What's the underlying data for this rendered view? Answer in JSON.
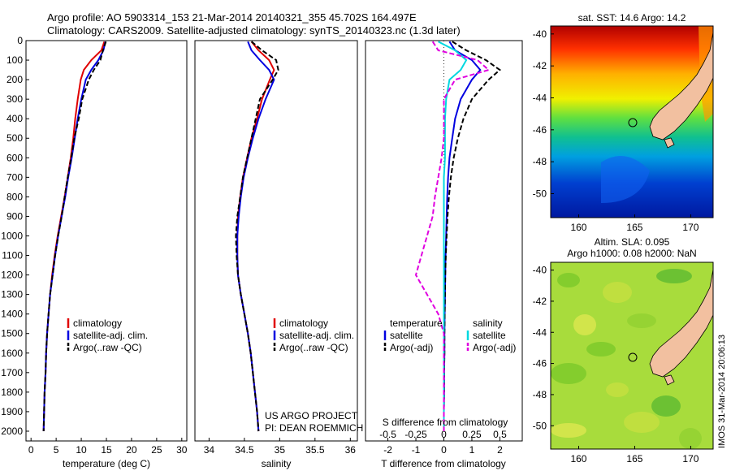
{
  "figure": {
    "title_line1": "Argo profile: AO 5903314_153 21-Mar-2014 20140321_355 45.702S 164.497E",
    "title_line2": "Climatology: CARS2009. Satellite-adjusted climatology: synTS_20140323.nc (1.3d later)",
    "watermark": "IMOS 31-Mar-2014 20:06:13"
  },
  "colors": {
    "climatology": "#e00000",
    "satellite": "#0000e0",
    "argo": "#000000",
    "sat_salinity": "#00d8e0",
    "argo_salinity": "#e000e0"
  },
  "chart_data": [
    {
      "type": "line",
      "id": "temperature",
      "xlabel": "temperature (deg C)",
      "xlim": [
        -1,
        31
      ],
      "xticks": [
        0,
        5,
        10,
        15,
        20,
        25,
        30
      ],
      "ylim": [
        2050,
        0
      ],
      "yticks": [
        0,
        100,
        200,
        300,
        400,
        500,
        600,
        700,
        800,
        900,
        1000,
        1100,
        1200,
        1300,
        1400,
        1500,
        1600,
        1700,
        1800,
        1900,
        2000
      ],
      "legend": [
        "climatology",
        "satellite-adj. clim.",
        "Argo(..raw -QC)"
      ],
      "depth": [
        5,
        50,
        100,
        150,
        200,
        300,
        400,
        500,
        600,
        700,
        800,
        900,
        1000,
        1100,
        1200,
        1300,
        1400,
        1500,
        1600,
        1700,
        1800,
        1900,
        2000
      ],
      "series": [
        {
          "name": "climatology",
          "values": [
            14.6,
            14.0,
            12.0,
            10.5,
            9.9,
            9.3,
            8.8,
            8.4,
            7.9,
            7.3,
            6.7,
            6.0,
            5.3,
            4.7,
            4.2,
            3.8,
            3.5,
            3.2,
            3.0,
            2.9,
            2.7,
            2.6,
            2.5
          ]
        },
        {
          "name": "satellite-adj. clim.",
          "values": [
            14.8,
            14.4,
            13.4,
            12.0,
            10.9,
            10.0,
            9.3,
            8.7,
            8.1,
            7.4,
            6.8,
            6.1,
            5.4,
            4.8,
            4.3,
            3.8,
            3.5,
            3.2,
            3.0,
            2.9,
            2.7,
            2.6,
            2.5
          ]
        },
        {
          "name": "Argo(..raw -QC)",
          "values": [
            14.9,
            14.3,
            13.8,
            12.5,
            11.5,
            10.2,
            9.5,
            8.6,
            8.0,
            7.3,
            6.7,
            6.1,
            5.4,
            4.8,
            4.3,
            3.8,
            3.5,
            3.2,
            3.0,
            2.9,
            2.7,
            2.6,
            2.5
          ]
        }
      ]
    },
    {
      "type": "line",
      "id": "salinity",
      "xlabel": "salinity",
      "xlim": [
        33.8,
        36.1
      ],
      "xticks": [
        34,
        34.5,
        35,
        35.5,
        36
      ],
      "ylim": [
        2050,
        0
      ],
      "legend": [
        "climatology",
        "satellite-adj. clim.",
        "Argo(..raw -QC)"
      ],
      "depth": [
        5,
        50,
        100,
        150,
        200,
        300,
        400,
        500,
        600,
        700,
        800,
        900,
        1000,
        1100,
        1200,
        1300,
        1400,
        1500,
        1600,
        1700,
        1800,
        1900,
        2000
      ],
      "series": [
        {
          "name": "climatology",
          "values": [
            34.6,
            34.7,
            34.85,
            34.92,
            34.86,
            34.75,
            34.68,
            34.6,
            34.54,
            34.48,
            34.44,
            34.41,
            34.4,
            34.4,
            34.41,
            34.45,
            34.5,
            34.55,
            34.59,
            34.62,
            34.65,
            34.68,
            34.7
          ]
        },
        {
          "name": "satellite-adj. clim.",
          "values": [
            34.55,
            34.6,
            34.72,
            34.85,
            34.92,
            34.8,
            34.7,
            34.62,
            34.55,
            34.49,
            34.45,
            34.42,
            34.4,
            34.4,
            34.41,
            34.45,
            34.5,
            34.55,
            34.59,
            34.62,
            34.65,
            34.68,
            34.7
          ]
        },
        {
          "name": "Argo(..raw -QC)",
          "values": [
            34.6,
            34.75,
            34.95,
            34.98,
            34.9,
            34.72,
            34.66,
            34.6,
            34.54,
            34.48,
            34.44,
            34.4,
            34.38,
            34.39,
            34.41,
            34.45,
            34.5,
            34.55,
            34.59,
            34.62,
            34.65,
            34.68,
            34.7
          ]
        }
      ]
    },
    {
      "type": "line",
      "id": "difference",
      "xlabel": "T difference from climatology",
      "xlabel2": "S difference from climatology",
      "xlim": [
        -2.8,
        2.8
      ],
      "xticks": [
        -2,
        -1,
        0,
        1,
        2
      ],
      "xticks_s": [
        "-0.5",
        "-0.25",
        "0",
        "0.25",
        "0.5"
      ],
      "ylim": [
        2050,
        0
      ],
      "legend_title_t": "temperature",
      "legend_title_s": "salinity",
      "legend": [
        "satellite",
        "Argo(-adj)",
        "satellite",
        "Argo(-adj)"
      ],
      "depth": [
        5,
        50,
        100,
        150,
        200,
        300,
        400,
        500,
        600,
        700,
        800,
        900,
        1000,
        1100,
        1200,
        1300,
        1400,
        1500,
        1600,
        1700,
        1800,
        1900,
        2000
      ],
      "series": [
        {
          "name": "T satellite",
          "values": [
            0.2,
            0.4,
            1.0,
            1.3,
            1.0,
            0.6,
            0.4,
            0.3,
            0.2,
            0.15,
            0.12,
            0.1,
            0.08,
            0.06,
            0.05,
            0.04,
            0.03,
            0.02,
            0.02,
            0.01,
            0.01,
            0.0,
            0.0
          ]
        },
        {
          "name": "T Argo(-adj)",
          "values": [
            0.3,
            0.8,
            1.5,
            2.0,
            1.6,
            1.0,
            0.7,
            0.5,
            0.35,
            0.25,
            0.18,
            0.13,
            0.1,
            0.07,
            0.05,
            0.04,
            0.03,
            0.02,
            0.02,
            0.01,
            0.01,
            0.0,
            0.0
          ]
        },
        {
          "name": "S satellite",
          "values": [
            -0.05,
            0.1,
            0.2,
            0.15,
            0.05,
            0.02,
            0.01,
            0.01,
            0.01,
            0.0,
            0.0,
            0.0,
            0.0,
            0.0,
            0.0,
            0.0,
            0.0,
            0.0,
            0.0,
            0.0,
            0.0,
            0.0,
            0.0
          ]
        },
        {
          "name": "S Argo(-adj)",
          "values": [
            -0.1,
            -0.05,
            0.3,
            0.4,
            0.1,
            0.0,
            0.0,
            0.0,
            -0.02,
            -0.05,
            -0.08,
            -0.1,
            -0.15,
            -0.2,
            -0.25,
            -0.15,
            -0.05,
            0.0,
            0.0,
            0.0,
            0.0,
            0.0,
            0.0
          ]
        }
      ]
    },
    {
      "type": "heatmap",
      "id": "sst_map",
      "title": "sat. SST: 14.6 Argo: 14.2",
      "xlim": [
        157.5,
        172
      ],
      "ylim": [
        -51.5,
        -39.5
      ],
      "xticks": [
        160,
        165,
        170
      ],
      "yticks": [
        -40,
        -42,
        -44,
        -46,
        -48,
        -50
      ],
      "argo_position": {
        "lon": 164.497,
        "lat": -45.702
      }
    },
    {
      "type": "heatmap",
      "id": "sla_map",
      "title_line1": "Altim. SLA: 0.095",
      "title_line2": "Argo h1000: 0.08 h2000: NaN",
      "xlim": [
        157.5,
        172
      ],
      "ylim": [
        -51.5,
        -39.5
      ],
      "xticks": [
        160,
        165,
        170
      ],
      "yticks": [
        -40,
        -42,
        -44,
        -46,
        -48,
        -50
      ],
      "argo_position": {
        "lon": 164.497,
        "lat": -45.702
      }
    }
  ],
  "credits": {
    "line1": "US ARGO PROJECT",
    "line2": "PI: DEAN ROEMMICH"
  }
}
